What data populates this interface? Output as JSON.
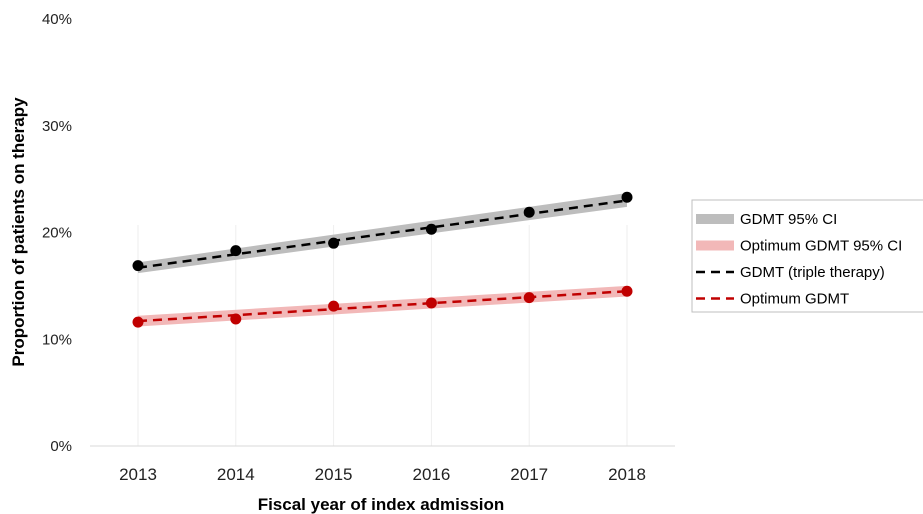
{
  "chart_data": {
    "type": "line",
    "title": "",
    "xlabel": "Fiscal year of  index admission",
    "ylabel": "Proportion of patients on therapy",
    "x": [
      "2013",
      "2014",
      "2015",
      "2016",
      "2017",
      "2018"
    ],
    "ylim": [
      0,
      40
    ],
    "yticks": [
      "0%",
      "10%",
      "20%",
      "30%",
      "40%"
    ],
    "grid": "vertical",
    "legend_position": "right",
    "series": [
      {
        "name": "GDMT (triple therapy)",
        "kind": "points-with-dashed-trend",
        "color": "#000000",
        "values": [
          16.9,
          18.3,
          19.0,
          20.3,
          21.9,
          23.3
        ],
        "trend": [
          16.7,
          23.0
        ]
      },
      {
        "name": "Optimum GDMT",
        "kind": "points-with-dashed-trend",
        "color": "#c00000",
        "values": [
          11.6,
          11.9,
          13.1,
          13.4,
          13.9,
          14.5
        ],
        "trend": [
          11.7,
          14.5
        ]
      }
    ],
    "bands": [
      {
        "name": "GDMT 95% CI",
        "color": "#bdbdbd",
        "lower": [
          16.2,
          22.4
        ],
        "upper": [
          17.2,
          23.7
        ]
      },
      {
        "name": "Optimum GDMT 95% CI",
        "color": "#f2b8b8",
        "lower": [
          11.2,
          14.0
        ],
        "upper": [
          12.2,
          15.0
        ]
      }
    ],
    "legend": [
      {
        "label": "GDMT 95% CI",
        "style": "band",
        "color": "#bdbdbd"
      },
      {
        "label": "Optimum GDMT 95% CI",
        "style": "band",
        "color": "#f2b8b8"
      },
      {
        "label": "GDMT (triple therapy)",
        "style": "dashed",
        "color": "#000000"
      },
      {
        "label": "Optimum GDMT",
        "style": "dashed",
        "color": "#c00000"
      }
    ]
  }
}
